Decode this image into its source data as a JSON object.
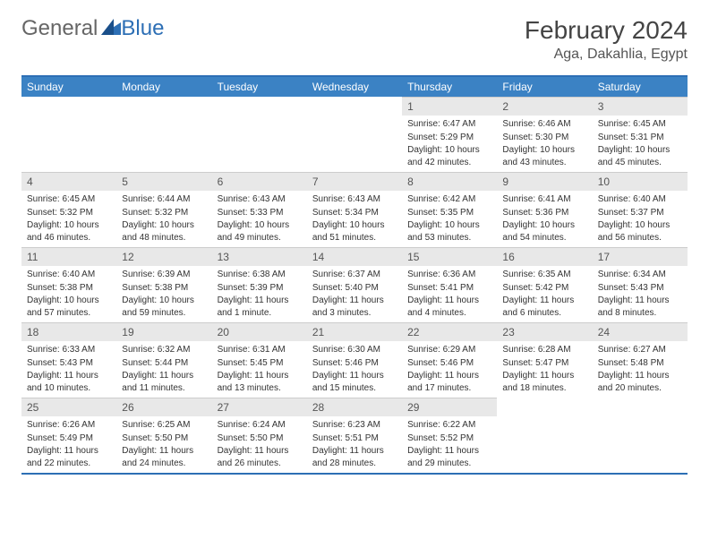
{
  "logo": {
    "general": "General",
    "blue": "Blue"
  },
  "title": "February 2024",
  "location": "Aga, Dakahlia, Egypt",
  "colors": {
    "header_bg": "#3b82c4",
    "header_text": "#ffffff",
    "daynum_bg": "#e8e8e8",
    "border": "#2d6fb5"
  },
  "weekdays": [
    "Sunday",
    "Monday",
    "Tuesday",
    "Wednesday",
    "Thursday",
    "Friday",
    "Saturday"
  ],
  "weeks": [
    [
      null,
      null,
      null,
      null,
      {
        "n": "1",
        "sr": "6:47 AM",
        "ss": "5:29 PM",
        "dl": "10 hours and 42 minutes."
      },
      {
        "n": "2",
        "sr": "6:46 AM",
        "ss": "5:30 PM",
        "dl": "10 hours and 43 minutes."
      },
      {
        "n": "3",
        "sr": "6:45 AM",
        "ss": "5:31 PM",
        "dl": "10 hours and 45 minutes."
      }
    ],
    [
      {
        "n": "4",
        "sr": "6:45 AM",
        "ss": "5:32 PM",
        "dl": "10 hours and 46 minutes."
      },
      {
        "n": "5",
        "sr": "6:44 AM",
        "ss": "5:32 PM",
        "dl": "10 hours and 48 minutes."
      },
      {
        "n": "6",
        "sr": "6:43 AM",
        "ss": "5:33 PM",
        "dl": "10 hours and 49 minutes."
      },
      {
        "n": "7",
        "sr": "6:43 AM",
        "ss": "5:34 PM",
        "dl": "10 hours and 51 minutes."
      },
      {
        "n": "8",
        "sr": "6:42 AM",
        "ss": "5:35 PM",
        "dl": "10 hours and 53 minutes."
      },
      {
        "n": "9",
        "sr": "6:41 AM",
        "ss": "5:36 PM",
        "dl": "10 hours and 54 minutes."
      },
      {
        "n": "10",
        "sr": "6:40 AM",
        "ss": "5:37 PM",
        "dl": "10 hours and 56 minutes."
      }
    ],
    [
      {
        "n": "11",
        "sr": "6:40 AM",
        "ss": "5:38 PM",
        "dl": "10 hours and 57 minutes."
      },
      {
        "n": "12",
        "sr": "6:39 AM",
        "ss": "5:38 PM",
        "dl": "10 hours and 59 minutes."
      },
      {
        "n": "13",
        "sr": "6:38 AM",
        "ss": "5:39 PM",
        "dl": "11 hours and 1 minute."
      },
      {
        "n": "14",
        "sr": "6:37 AM",
        "ss": "5:40 PM",
        "dl": "11 hours and 3 minutes."
      },
      {
        "n": "15",
        "sr": "6:36 AM",
        "ss": "5:41 PM",
        "dl": "11 hours and 4 minutes."
      },
      {
        "n": "16",
        "sr": "6:35 AM",
        "ss": "5:42 PM",
        "dl": "11 hours and 6 minutes."
      },
      {
        "n": "17",
        "sr": "6:34 AM",
        "ss": "5:43 PM",
        "dl": "11 hours and 8 minutes."
      }
    ],
    [
      {
        "n": "18",
        "sr": "6:33 AM",
        "ss": "5:43 PM",
        "dl": "11 hours and 10 minutes."
      },
      {
        "n": "19",
        "sr": "6:32 AM",
        "ss": "5:44 PM",
        "dl": "11 hours and 11 minutes."
      },
      {
        "n": "20",
        "sr": "6:31 AM",
        "ss": "5:45 PM",
        "dl": "11 hours and 13 minutes."
      },
      {
        "n": "21",
        "sr": "6:30 AM",
        "ss": "5:46 PM",
        "dl": "11 hours and 15 minutes."
      },
      {
        "n": "22",
        "sr": "6:29 AM",
        "ss": "5:46 PM",
        "dl": "11 hours and 17 minutes."
      },
      {
        "n": "23",
        "sr": "6:28 AM",
        "ss": "5:47 PM",
        "dl": "11 hours and 18 minutes."
      },
      {
        "n": "24",
        "sr": "6:27 AM",
        "ss": "5:48 PM",
        "dl": "11 hours and 20 minutes."
      }
    ],
    [
      {
        "n": "25",
        "sr": "6:26 AM",
        "ss": "5:49 PM",
        "dl": "11 hours and 22 minutes."
      },
      {
        "n": "26",
        "sr": "6:25 AM",
        "ss": "5:50 PM",
        "dl": "11 hours and 24 minutes."
      },
      {
        "n": "27",
        "sr": "6:24 AM",
        "ss": "5:50 PM",
        "dl": "11 hours and 26 minutes."
      },
      {
        "n": "28",
        "sr": "6:23 AM",
        "ss": "5:51 PM",
        "dl": "11 hours and 28 minutes."
      },
      {
        "n": "29",
        "sr": "6:22 AM",
        "ss": "5:52 PM",
        "dl": "11 hours and 29 minutes."
      },
      null,
      null
    ]
  ],
  "labels": {
    "sunrise": "Sunrise:",
    "sunset": "Sunset:",
    "daylight": "Daylight:"
  }
}
